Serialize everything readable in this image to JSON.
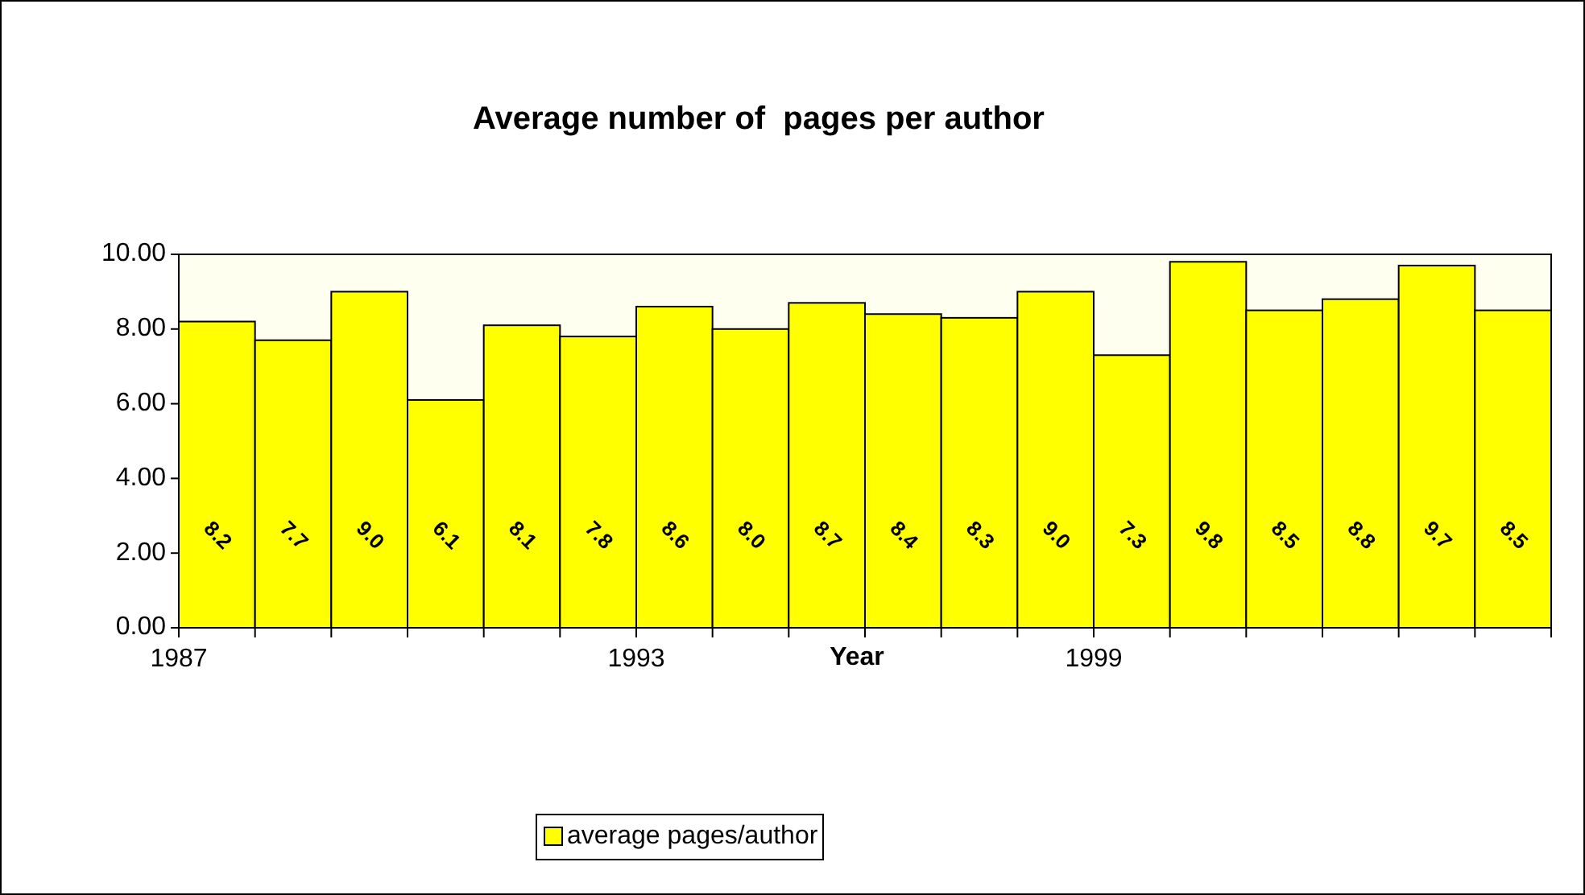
{
  "chart_data": {
    "type": "bar",
    "title": "Average number of  pages per author",
    "xlabel": "Year",
    "categories": [
      "1987",
      null,
      null,
      null,
      null,
      null,
      "1993",
      null,
      null,
      null,
      null,
      null,
      "1999",
      null,
      null,
      null,
      null,
      null
    ],
    "series": [
      {
        "name": "average pages/author",
        "color": "#ffff00",
        "values": [
          8.2,
          7.7,
          9.0,
          6.1,
          8.1,
          7.8,
          8.6,
          8.0,
          8.7,
          8.4,
          8.3,
          9.0,
          7.3,
          9.8,
          8.5,
          8.8,
          9.7,
          8.5
        ]
      }
    ],
    "ylim": [
      0,
      10
    ],
    "yticks": [
      {
        "value": 0,
        "label": "0.00"
      },
      {
        "value": 2,
        "label": "2.00"
      },
      {
        "value": 4,
        "label": "4.00"
      },
      {
        "value": 6,
        "label": "6.00"
      },
      {
        "value": 8,
        "label": "8.00"
      },
      {
        "value": 10,
        "label": "10.00"
      }
    ],
    "value_labels": [
      "8.2",
      "7.7",
      "9.0",
      "6.1",
      "8.1",
      "7.8",
      "8.6",
      "8.0",
      "8.7",
      "8.4",
      "8.3",
      "9.0",
      "7.3",
      "9.8",
      "8.5",
      "8.8",
      "9.7",
      "8.5"
    ],
    "grid": false,
    "legend": "bottom"
  }
}
